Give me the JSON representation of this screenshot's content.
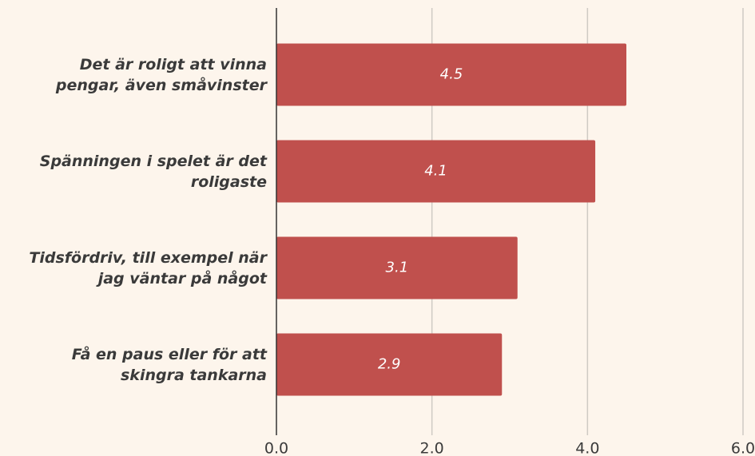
{
  "chart_data": {
    "type": "barh",
    "categories": [
      "Det är roligt att vinna pengar, även småvinster",
      "Spänningen i spelet är det roligaste",
      "Tidsfördriv, till exempel när jag väntar på något",
      "Få en paus eller för att skingra tankarna"
    ],
    "values": [
      4.5,
      4.1,
      3.1,
      2.9
    ],
    "color": "#c0504d",
    "xlim": [
      0,
      6
    ],
    "xticks": [
      {
        "value": 0,
        "label": "0.0"
      },
      {
        "value": 2,
        "label": "2.0"
      },
      {
        "value": 4,
        "label": "4.0"
      },
      {
        "value": 6,
        "label": "6.0"
      }
    ],
    "grid": true
  }
}
